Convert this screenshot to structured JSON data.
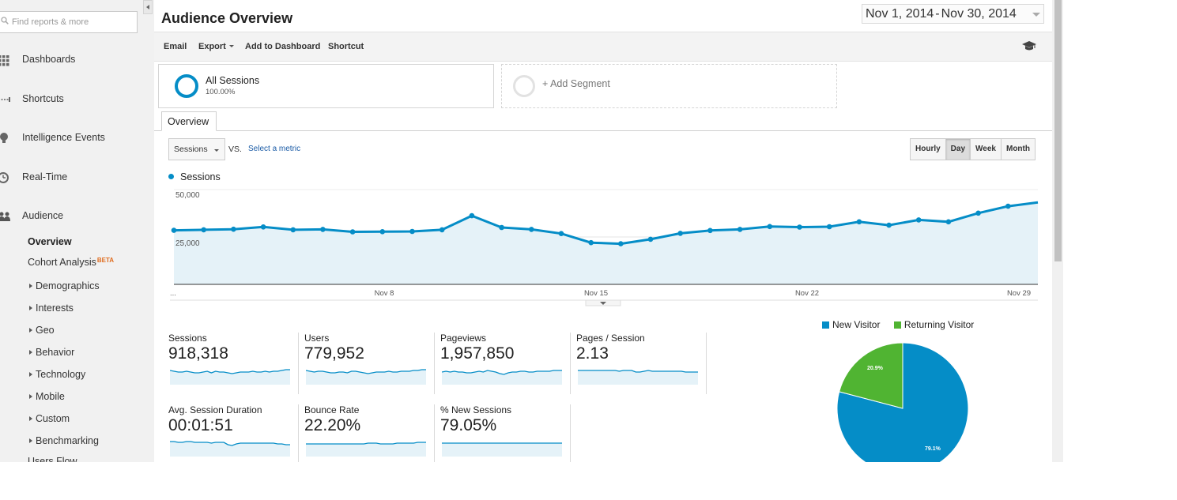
{
  "search": {
    "placeholder": "Find reports & more"
  },
  "sidebar": {
    "main_items": [
      {
        "label": "Dashboards"
      },
      {
        "label": "Shortcuts"
      },
      {
        "label": "Intelligence Events"
      },
      {
        "label": "Real-Time"
      },
      {
        "label": "Audience"
      }
    ],
    "audience_sub": {
      "overview": "Overview",
      "cohort": "Cohort Analysis",
      "beta": "BETA",
      "tree": [
        "Demographics",
        "Interests",
        "Geo",
        "Behavior",
        "Technology",
        "Mobile",
        "Custom",
        "Benchmarking"
      ],
      "cut_off": "Users Flow"
    }
  },
  "header": {
    "title": "Audience Overview",
    "date_start": "Nov 1, 2014",
    "date_sep": "-",
    "date_end": "Nov 30, 2014"
  },
  "toolbar": {
    "email": "Email",
    "export": "Export",
    "add_dashboard": "Add to Dashboard",
    "shortcut": "Shortcut"
  },
  "segments": [
    {
      "name": "All Sessions",
      "percent": "100.00%"
    },
    {
      "name": "+ Add Segment"
    }
  ],
  "tabs": {
    "overview": "Overview"
  },
  "chart_controls": {
    "metric": "Sessions",
    "vs": "VS.",
    "select_metric": "Select a metric",
    "intervals": [
      "Hourly",
      "Day",
      "Week",
      "Month"
    ],
    "active_interval": "Day"
  },
  "colors": {
    "primary": "#058dc7",
    "secondary": "#50b432",
    "area_fill": "#e5f2f8"
  },
  "chart_data": [
    {
      "type": "line",
      "legend": [
        "Sessions"
      ],
      "y_ticks": [
        "50,000",
        "25,000"
      ],
      "x_tick_labels": [
        "...",
        "Nov 8",
        "Nov 15",
        "Nov 22",
        "Nov 29"
      ],
      "x": [
        "Nov 1",
        "Nov 2",
        "Nov 3",
        "Nov 4",
        "Nov 5",
        "Nov 6",
        "Nov 7",
        "Nov 8",
        "Nov 9",
        "Nov 10",
        "Nov 11",
        "Nov 12",
        "Nov 13",
        "Nov 14",
        "Nov 15",
        "Nov 16",
        "Nov 17",
        "Nov 18",
        "Nov 19",
        "Nov 20",
        "Nov 21",
        "Nov 22",
        "Nov 23",
        "Nov 24",
        "Nov 25",
        "Nov 26",
        "Nov 27",
        "Nov 28",
        "Nov 29",
        "Nov 30"
      ],
      "series": [
        {
          "name": "Sessions",
          "values": [
            28500,
            28800,
            29100,
            30300,
            28800,
            29000,
            27700,
            27800,
            27900,
            28800,
            36200,
            30000,
            29000,
            26800,
            22000,
            21400,
            23800,
            26900,
            28400,
            29000,
            30500,
            30200,
            30400,
            33000,
            31200,
            34000,
            33000,
            37600,
            41200,
            43200
          ]
        }
      ],
      "ylim": [
        0,
        50000
      ],
      "grid": true
    },
    {
      "type": "pie",
      "labels": [
        "New Visitor",
        "Returning Visitor"
      ],
      "values": [
        79.1,
        20.9
      ],
      "slice_labels": [
        "79.1%",
        "20.9%"
      ],
      "colors": [
        "#058dc7",
        "#50b432"
      ],
      "legend_position": "top"
    }
  ],
  "scorecards": [
    {
      "label": "Sessions",
      "value": "918,318",
      "spark": [
        8,
        7,
        6,
        6,
        7,
        6,
        5,
        5,
        6,
        7,
        5,
        7,
        6,
        6,
        5,
        4,
        5,
        6,
        6,
        6,
        7,
        6,
        6,
        7,
        6,
        7,
        7,
        8,
        9,
        9
      ]
    },
    {
      "label": "Users",
      "value": "779,952",
      "spark": [
        8,
        7,
        6,
        7,
        7,
        6,
        5,
        5,
        6,
        6,
        5,
        7,
        7,
        6,
        5,
        4,
        5,
        6,
        6,
        6,
        7,
        6,
        6,
        7,
        7,
        7,
        8,
        8,
        9,
        9
      ]
    },
    {
      "label": "Pageviews",
      "value": "1,957,850",
      "spark": [
        6,
        7,
        6,
        7,
        6,
        6,
        5,
        5,
        6,
        7,
        6,
        8,
        7,
        6,
        4,
        3,
        5,
        6,
        6,
        7,
        7,
        6,
        6,
        7,
        7,
        7,
        7,
        8,
        8,
        8
      ]
    },
    {
      "label": "Pages / Session",
      "value": "2.13",
      "spark": [
        8,
        8,
        8,
        8,
        8,
        8,
        8,
        8,
        8,
        8,
        7,
        8,
        8,
        8,
        6,
        6,
        7,
        8,
        7,
        7,
        7,
        7,
        7,
        7,
        7,
        7,
        6,
        6,
        6,
        6
      ]
    },
    {
      "label": "Avg. Session Duration",
      "value": "00:01:51",
      "spark": [
        9,
        9,
        8,
        8,
        9,
        9,
        8,
        8,
        8,
        8,
        7,
        8,
        8,
        8,
        5,
        4,
        6,
        7,
        7,
        7,
        7,
        7,
        7,
        7,
        7,
        7,
        6,
        6,
        5,
        5
      ]
    },
    {
      "label": "Bounce Rate",
      "value": "22.20%",
      "spark": [
        6,
        6,
        6,
        6,
        6,
        6,
        6,
        6,
        6,
        6,
        6,
        6,
        6,
        6,
        6,
        7,
        7,
        7,
        6,
        6,
        6,
        6,
        7,
        7,
        7,
        7,
        7,
        8,
        8,
        8
      ]
    },
    {
      "label": "% New Sessions",
      "value": "79.05%",
      "spark": [
        7,
        7,
        7,
        7,
        7,
        7,
        7,
        7,
        7,
        7,
        7,
        7,
        7,
        7,
        7,
        7,
        7,
        7,
        7,
        7,
        7,
        7,
        7,
        7,
        7,
        7,
        7,
        7,
        7,
        7
      ]
    }
  ]
}
